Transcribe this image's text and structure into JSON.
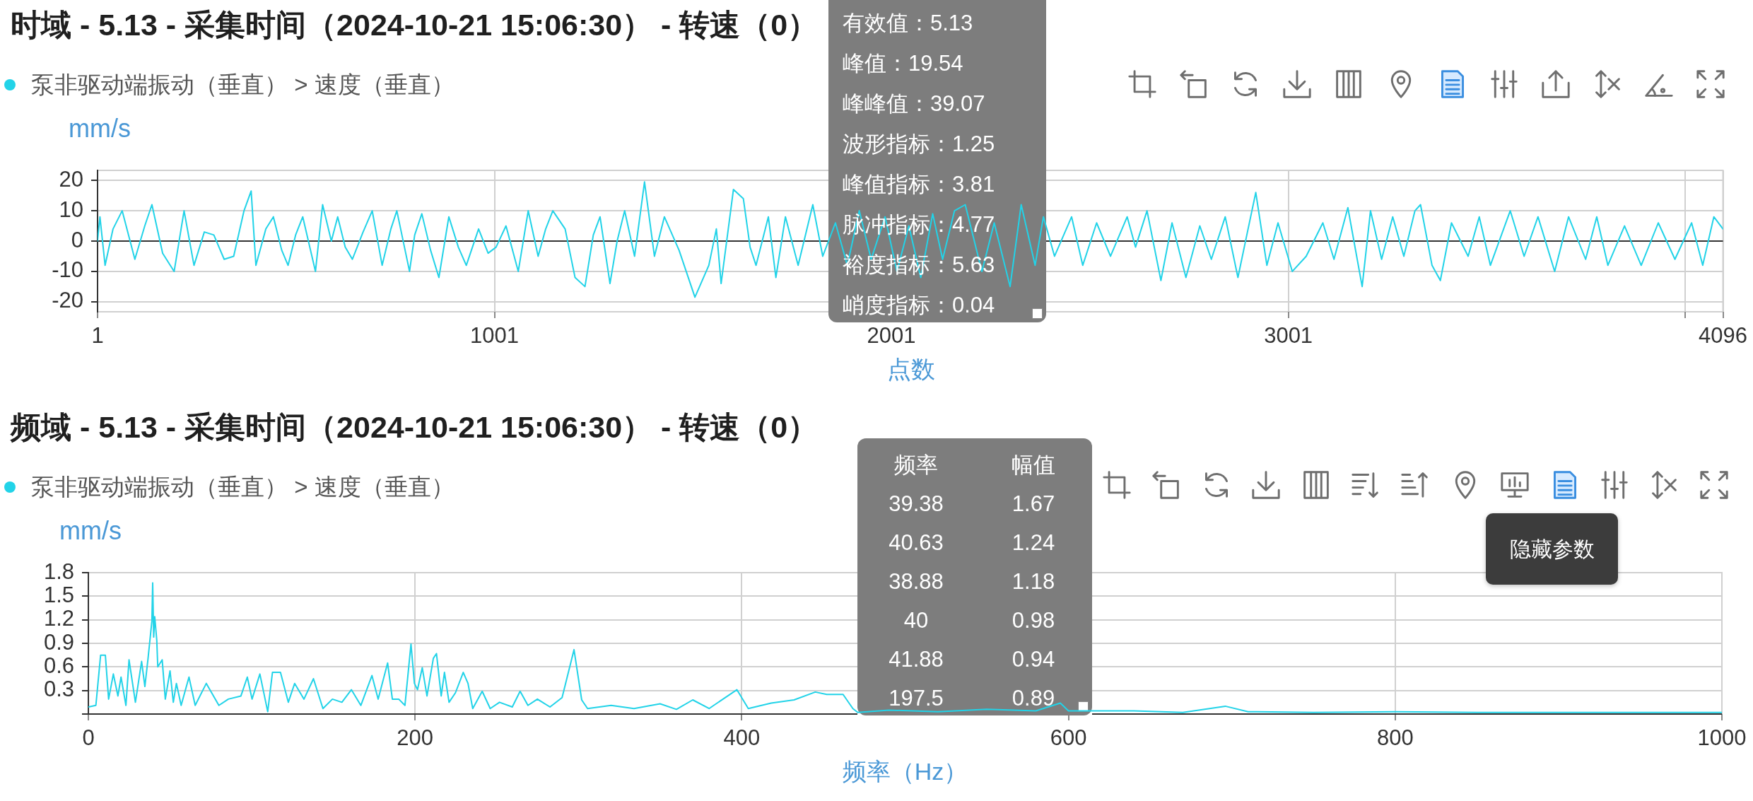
{
  "chart_data": [
    {
      "type": "line",
      "title": "时域 - 5.13 - 采集时间（2024-10-21 15:06:30） - 转速（0）",
      "xlabel": "点数",
      "ylabel": "mm/s",
      "legend": "top left",
      "grid": true,
      "marker": "none",
      "line_style": "solid",
      "xlim": [
        1,
        4096
      ],
      "xticks": [
        1,
        1001,
        2001,
        3001,
        {
          "value": 4001,
          "label": null
        },
        4096
      ],
      "ylim": [
        -23.3,
        23.3
      ],
      "yticks": [
        20,
        10,
        0,
        -10,
        -20
      ],
      "x": [
        1,
        7,
        20,
        40,
        63,
        95,
        120,
        138,
        165,
        194,
        219,
        244,
        270,
        294,
        320,
        344,
        370,
        388,
        400,
        425,
        444,
        465,
        481,
        500,
        518,
        550,
        568,
        590,
        606,
        625,
        643,
        670,
        693,
        718,
        740,
        755,
        787,
        800,
        818,
        840,
        861,
        886,
        910,
        930,
        961,
        985,
        1005,
        1030,
        1061,
        1086,
        1111,
        1130,
        1148,
        1179,
        1204,
        1229,
        1250,
        1267,
        1292,
        1310,
        1329,
        1354,
        1379,
        1404,
        1429,
        1466,
        1506,
        1541,
        1560,
        1572,
        1603,
        1628,
        1645,
        1660,
        1691,
        1710,
        1734,
        1766,
        1803,
        1828,
        1860,
        1890,
        1920,
        1950,
        1985,
        2015,
        2045,
        2075,
        2105,
        2130,
        2160,
        2187,
        2229,
        2260,
        2300,
        2328,
        2363,
        2384,
        2412,
        2455,
        2483,
        2518,
        2553,
        2595,
        2616,
        2645,
        2680,
        2708,
        2743,
        2778,
        2807,
        2842,
        2874,
        2898,
        2919,
        2947,
        2975,
        3011,
        3046,
        3088,
        3116,
        3151,
        3187,
        3208,
        3236,
        3264,
        3292,
        3320,
        3334,
        3363,
        3384,
        3412,
        3454,
        3482,
        3510,
        3560,
        3595,
        3630,
        3672,
        3707,
        3750,
        3778,
        3806,
        3848,
        3890,
        3933,
        3975,
        4017,
        4045,
        4073,
        4096
      ],
      "series": [
        {
          "name": "泵非驱动端振动（垂直） > 速度（垂直）",
          "color": "#22d3e8",
          "values": [
            0,
            8,
            -8,
            4,
            10,
            -6,
            5,
            12,
            -4,
            -10,
            10,
            -8,
            3,
            2,
            -6,
            -5,
            10,
            16.5,
            -8,
            4,
            8,
            -3,
            -8,
            2,
            8,
            -10,
            12,
            0,
            8,
            -2,
            -6,
            3,
            10,
            -8,
            4,
            10,
            -10,
            2,
            9,
            -3,
            -12,
            8,
            -2,
            -8,
            4,
            -4,
            -2,
            5,
            -10,
            10,
            -5,
            4,
            10,
            4,
            -12,
            -15,
            2,
            8,
            -14,
            0,
            10,
            -5,
            19.5,
            -5,
            8,
            -3,
            -18.5,
            -8,
            4,
            -14,
            17,
            14,
            -2,
            -8,
            8,
            -12,
            8,
            -8,
            12,
            -5,
            6,
            -8,
            10,
            -6,
            8,
            -10,
            5,
            -12,
            9,
            -6,
            10,
            12,
            -10,
            6,
            -15,
            12,
            -8,
            8,
            -5,
            8,
            -8,
            6,
            -5,
            8,
            -2,
            10,
            -13,
            6,
            -12,
            5,
            -6,
            8,
            -12,
            3,
            16,
            -8,
            6,
            -10,
            -5,
            6,
            -6,
            11,
            -15,
            10,
            -6,
            8,
            -5,
            10,
            12,
            -8,
            -13,
            6,
            -5,
            8,
            -8,
            10,
            -5,
            8,
            -10,
            8,
            -6,
            8,
            -8,
            5,
            -8,
            6,
            -6,
            6,
            -8,
            8,
            4
          ]
        }
      ],
      "annotations": [
        "有效值：5.13",
        "峰值：19.54",
        "峰峰值：39.07",
        "波形指标：1.25",
        "峰值指标：3.81",
        "脉冲指标：4.77",
        "裕度指标：5.63",
        "峭度指标：0.04"
      ]
    },
    {
      "type": "line",
      "title": "频域 - 5.13 - 采集时间（2024-10-21 15:06:30） - 转速（0）",
      "xlabel": "频率（Hz）",
      "ylabel": "mm/s",
      "legend": "top left",
      "grid": true,
      "marker": "none",
      "line_style": "solid",
      "xlim": [
        0,
        1000
      ],
      "xticks": [
        0,
        200,
        400,
        600,
        800,
        1000
      ],
      "ylim": [
        0,
        1.8
      ],
      "yticks": [
        {
          "value": 0,
          "label": null
        },
        0.3,
        0.6,
        0.9,
        1.2,
        1.5,
        1.8
      ],
      "x": [
        0,
        4.6,
        7.5,
        10.4,
        12.4,
        15.3,
        18.1,
        20,
        23,
        24.9,
        28.8,
        32.6,
        34.6,
        36.5,
        38.88,
        39.38,
        40,
        40.63,
        41.88,
        42.5,
        45.2,
        47.1,
        50,
        52,
        53.9,
        56.8,
        61.6,
        65.4,
        72.2,
        79.9,
        85.7,
        93.4,
        97.3,
        100.2,
        105,
        109.8,
        112.7,
        117.6,
        122.4,
        126.3,
        132,
        137.8,
        143.6,
        149.4,
        155.2,
        161,
        166.8,
        173.6,
        177.4,
        183.2,
        186.1,
        190,
        193.8,
        197.5,
        199.6,
        201.5,
        204.4,
        207.3,
        211.2,
        213.1,
        216,
        218,
        220.8,
        224.7,
        229.5,
        232.4,
        235.3,
        241.1,
        246,
        251.7,
        259.5,
        264.3,
        269.1,
        274.9,
        282.6,
        290,
        297.3,
        302,
        305.6,
        320,
        334,
        350,
        360,
        370,
        380,
        397,
        404,
        418,
        432,
        445,
        452,
        462,
        468,
        471,
        490,
        520,
        550,
        580,
        595,
        600,
        640,
        670,
        696,
        710,
        750,
        800,
        850,
        900,
        950,
        1000
      ],
      "series": [
        {
          "name": "泵非驱动端振动（垂直） > 速度（垂直）",
          "color": "#22d3e8",
          "values": [
            0.09,
            0.11,
            0.75,
            0.75,
            0.19,
            0.51,
            0.23,
            0.47,
            0.11,
            0.69,
            0.15,
            0.67,
            0.35,
            0.7,
            1.18,
            1.67,
            0.98,
            1.24,
            0.94,
            0.6,
            0.69,
            0.19,
            0.55,
            0.15,
            0.39,
            0.11,
            0.47,
            0.11,
            0.39,
            0.11,
            0.19,
            0.23,
            0.47,
            0.19,
            0.51,
            0.03,
            0.53,
            0.53,
            0.15,
            0.39,
            0.19,
            0.45,
            0.07,
            0.19,
            0.15,
            0.31,
            0.11,
            0.49,
            0.19,
            0.65,
            0.19,
            0.19,
            0.11,
            0.89,
            0.39,
            0.31,
            0.59,
            0.23,
            0.71,
            0.77,
            0.23,
            0.53,
            0.15,
            0.27,
            0.53,
            0.39,
            0.07,
            0.29,
            0.07,
            0.15,
            0.09,
            0.29,
            0.11,
            0.19,
            0.09,
            0.21,
            0.82,
            0.18,
            0.07,
            0.11,
            0.07,
            0.13,
            0.06,
            0.18,
            0.07,
            0.31,
            0.07,
            0.14,
            0.18,
            0.28,
            0.25,
            0.25,
            0.07,
            0.02,
            0.05,
            0.03,
            0.06,
            0.04,
            0.14,
            0.04,
            0.04,
            0.02,
            0.1,
            0.03,
            0.02,
            0.03,
            0.02,
            0.02,
            0.02,
            0.02
          ]
        }
      ],
      "annotations": [
        "频率",
        "幅值",
        "39.38",
        "1.67",
        "40.63",
        "1.24",
        "38.88",
        "1.18",
        "40",
        "0.98",
        "41.88",
        "0.94",
        "197.5",
        "0.89",
        "隐藏参数"
      ]
    }
  ]
}
